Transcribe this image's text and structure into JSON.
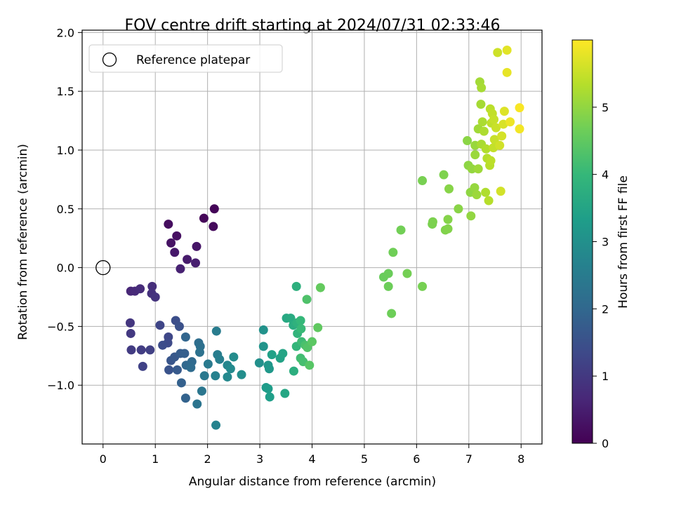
{
  "chart_data": {
    "type": "scatter",
    "title": "FOV centre drift starting at 2024/07/31 02:33:46",
    "xlabel": "Angular distance from reference (arcmin)",
    "ylabel": "Rotation from reference (arcmin)",
    "xlim": [
      -0.4,
      8.4
    ],
    "ylim": [
      -1.5,
      2.02
    ],
    "xticks": [
      0,
      1,
      2,
      3,
      4,
      5,
      6,
      7,
      8
    ],
    "yticks": [
      -1.0,
      -0.5,
      0.0,
      0.5,
      1.0,
      1.5,
      2.0
    ],
    "ytick_labels": [
      "−1.0",
      "−0.5",
      "0.0",
      "0.5",
      "1.0",
      "1.5",
      "2.0"
    ],
    "grid": true,
    "legend": {
      "position": "top-left",
      "entries": [
        "Reference platepar"
      ]
    },
    "reference_point": {
      "x": 0,
      "y": 0
    },
    "colorbar": {
      "label": "Hours from first FF file",
      "colormap": "viridis",
      "range": [
        0,
        6
      ],
      "ticks": [
        0,
        1,
        2,
        3,
        4,
        5
      ],
      "stops": [
        "#440154",
        "#482878",
        "#3e4989",
        "#31688e",
        "#26828e",
        "#1f9e89",
        "#35b779",
        "#6ece58",
        "#b5de2b",
        "#fde725"
      ]
    },
    "points": [
      {
        "x": 2.13,
        "y": 0.5,
        "h": 0.05
      },
      {
        "x": 1.93,
        "y": 0.42,
        "h": 0.1
      },
      {
        "x": 2.11,
        "y": 0.35,
        "h": 0.15
      },
      {
        "x": 1.25,
        "y": 0.37,
        "h": 0.2
      },
      {
        "x": 1.41,
        "y": 0.27,
        "h": 0.25
      },
      {
        "x": 1.3,
        "y": 0.21,
        "h": 0.3
      },
      {
        "x": 1.79,
        "y": 0.18,
        "h": 0.35
      },
      {
        "x": 1.37,
        "y": 0.13,
        "h": 0.4
      },
      {
        "x": 1.61,
        "y": 0.07,
        "h": 0.45
      },
      {
        "x": 1.77,
        "y": 0.04,
        "h": 0.5
      },
      {
        "x": 1.48,
        "y": -0.01,
        "h": 0.55
      },
      {
        "x": 0.53,
        "y": -0.2,
        "h": 0.65
      },
      {
        "x": 0.61,
        "y": -0.2,
        "h": 0.7
      },
      {
        "x": 0.71,
        "y": -0.18,
        "h": 0.75
      },
      {
        "x": 0.94,
        "y": -0.16,
        "h": 0.8
      },
      {
        "x": 0.93,
        "y": -0.22,
        "h": 0.85
      },
      {
        "x": 1.0,
        "y": -0.25,
        "h": 0.9
      },
      {
        "x": 0.52,
        "y": -0.47,
        "h": 0.95
      },
      {
        "x": 0.53,
        "y": -0.56,
        "h": 1.0
      },
      {
        "x": 0.54,
        "y": -0.7,
        "h": 1.05
      },
      {
        "x": 0.73,
        "y": -0.7,
        "h": 1.1
      },
      {
        "x": 0.9,
        "y": -0.7,
        "h": 1.15
      },
      {
        "x": 0.76,
        "y": -0.84,
        "h": 1.2
      },
      {
        "x": 1.09,
        "y": -0.49,
        "h": 1.25
      },
      {
        "x": 1.25,
        "y": -0.59,
        "h": 1.3
      },
      {
        "x": 1.24,
        "y": -0.64,
        "h": 1.35
      },
      {
        "x": 1.14,
        "y": -0.66,
        "h": 1.4
      },
      {
        "x": 1.39,
        "y": -0.45,
        "h": 1.45
      },
      {
        "x": 1.46,
        "y": -0.5,
        "h": 1.5
      },
      {
        "x": 1.26,
        "y": -0.87,
        "h": 1.55
      },
      {
        "x": 1.3,
        "y": -0.79,
        "h": 1.6
      },
      {
        "x": 1.37,
        "y": -0.76,
        "h": 1.65
      },
      {
        "x": 1.42,
        "y": -0.87,
        "h": 1.7
      },
      {
        "x": 1.48,
        "y": -0.73,
        "h": 1.75
      },
      {
        "x": 1.56,
        "y": -0.73,
        "h": 1.8
      },
      {
        "x": 1.5,
        "y": -0.98,
        "h": 1.85
      },
      {
        "x": 1.58,
        "y": -1.11,
        "h": 1.9
      },
      {
        "x": 1.58,
        "y": -0.59,
        "h": 1.95
      },
      {
        "x": 1.59,
        "y": -0.83,
        "h": 2.0
      },
      {
        "x": 1.7,
        "y": -0.8,
        "h": 2.05
      },
      {
        "x": 1.68,
        "y": -0.85,
        "h": 2.1
      },
      {
        "x": 1.83,
        "y": -0.64,
        "h": 2.15
      },
      {
        "x": 1.86,
        "y": -0.67,
        "h": 2.2
      },
      {
        "x": 1.85,
        "y": -0.72,
        "h": 2.25
      },
      {
        "x": 1.8,
        "y": -1.16,
        "h": 2.3
      },
      {
        "x": 1.89,
        "y": -1.05,
        "h": 2.35
      },
      {
        "x": 1.94,
        "y": -0.92,
        "h": 2.4
      },
      {
        "x": 2.01,
        "y": -0.82,
        "h": 2.45
      },
      {
        "x": 2.17,
        "y": -0.54,
        "h": 2.5
      },
      {
        "x": 2.19,
        "y": -0.74,
        "h": 2.55
      },
      {
        "x": 2.23,
        "y": -0.78,
        "h": 2.6
      },
      {
        "x": 2.15,
        "y": -0.92,
        "h": 2.65
      },
      {
        "x": 2.16,
        "y": -1.34,
        "h": 2.7
      },
      {
        "x": 2.38,
        "y": -0.83,
        "h": 2.75
      },
      {
        "x": 2.38,
        "y": -0.93,
        "h": 2.8
      },
      {
        "x": 2.44,
        "y": -0.86,
        "h": 2.85
      },
      {
        "x": 2.5,
        "y": -0.76,
        "h": 2.9
      },
      {
        "x": 2.65,
        "y": -0.91,
        "h": 2.95
      },
      {
        "x": 2.99,
        "y": -0.81,
        "h": 3.0
      },
      {
        "x": 3.07,
        "y": -0.53,
        "h": 3.05
      },
      {
        "x": 3.07,
        "y": -0.67,
        "h": 3.1
      },
      {
        "x": 3.16,
        "y": -0.83,
        "h": 3.15
      },
      {
        "x": 3.18,
        "y": -0.86,
        "h": 3.2
      },
      {
        "x": 3.12,
        "y": -1.02,
        "h": 3.25
      },
      {
        "x": 3.16,
        "y": -1.03,
        "h": 3.3
      },
      {
        "x": 3.19,
        "y": -1.1,
        "h": 3.35
      },
      {
        "x": 3.23,
        "y": -0.74,
        "h": 3.4
      },
      {
        "x": 3.39,
        "y": -0.77,
        "h": 3.45
      },
      {
        "x": 3.44,
        "y": -0.73,
        "h": 3.5
      },
      {
        "x": 3.48,
        "y": -1.07,
        "h": 3.55
      },
      {
        "x": 3.51,
        "y": -0.43,
        "h": 3.6
      },
      {
        "x": 3.59,
        "y": -0.43,
        "h": 3.65
      },
      {
        "x": 3.64,
        "y": -0.49,
        "h": 3.7
      },
      {
        "x": 3.65,
        "y": -0.88,
        "h": 3.75
      },
      {
        "x": 3.7,
        "y": -0.16,
        "h": 3.8
      },
      {
        "x": 3.71,
        "y": -0.47,
        "h": 3.85
      },
      {
        "x": 3.72,
        "y": -0.56,
        "h": 3.9
      },
      {
        "x": 3.7,
        "y": -0.67,
        "h": 3.95
      },
      {
        "x": 3.78,
        "y": -0.45,
        "h": 4.0
      },
      {
        "x": 3.79,
        "y": -0.52,
        "h": 4.05
      },
      {
        "x": 3.8,
        "y": -0.63,
        "h": 4.1
      },
      {
        "x": 3.78,
        "y": -0.77,
        "h": 4.15
      },
      {
        "x": 3.83,
        "y": -0.8,
        "h": 4.2
      },
      {
        "x": 3.87,
        "y": -0.66,
        "h": 4.25
      },
      {
        "x": 3.9,
        "y": -0.27,
        "h": 4.3
      },
      {
        "x": 3.91,
        "y": -0.68,
        "h": 4.35
      },
      {
        "x": 3.95,
        "y": -0.83,
        "h": 4.4
      },
      {
        "x": 4.0,
        "y": -0.63,
        "h": 4.45
      },
      {
        "x": 4.11,
        "y": -0.51,
        "h": 4.5
      },
      {
        "x": 4.16,
        "y": -0.17,
        "h": 4.55
      },
      {
        "x": 5.37,
        "y": -0.08,
        "h": 4.6
      },
      {
        "x": 5.46,
        "y": -0.05,
        "h": 4.62
      },
      {
        "x": 5.46,
        "y": -0.16,
        "h": 4.64
      },
      {
        "x": 5.52,
        "y": -0.39,
        "h": 4.66
      },
      {
        "x": 5.55,
        "y": 0.13,
        "h": 4.68
      },
      {
        "x": 5.7,
        "y": 0.32,
        "h": 4.7
      },
      {
        "x": 5.82,
        "y": -0.05,
        "h": 4.72
      },
      {
        "x": 6.11,
        "y": -0.16,
        "h": 4.74
      },
      {
        "x": 6.11,
        "y": 0.74,
        "h": 4.76
      },
      {
        "x": 6.3,
        "y": 0.37,
        "h": 4.78
      },
      {
        "x": 6.31,
        "y": 0.39,
        "h": 4.8
      },
      {
        "x": 6.52,
        "y": 0.79,
        "h": 4.82
      },
      {
        "x": 6.55,
        "y": 0.32,
        "h": 4.84
      },
      {
        "x": 6.6,
        "y": 0.33,
        "h": 4.86
      },
      {
        "x": 6.6,
        "y": 0.41,
        "h": 4.88
      },
      {
        "x": 6.62,
        "y": 0.67,
        "h": 4.9
      },
      {
        "x": 6.8,
        "y": 0.5,
        "h": 4.92
      },
      {
        "x": 6.97,
        "y": 1.08,
        "h": 4.94
      },
      {
        "x": 6.99,
        "y": 0.87,
        "h": 4.96
      },
      {
        "x": 7.03,
        "y": 0.64,
        "h": 4.98
      },
      {
        "x": 7.04,
        "y": 0.44,
        "h": 5.0
      },
      {
        "x": 7.06,
        "y": 0.84,
        "h": 5.02
      },
      {
        "x": 7.11,
        "y": 0.68,
        "h": 5.04
      },
      {
        "x": 7.12,
        "y": 1.04,
        "h": 5.06
      },
      {
        "x": 7.12,
        "y": 0.96,
        "h": 5.08
      },
      {
        "x": 7.15,
        "y": 0.62,
        "h": 5.1
      },
      {
        "x": 7.18,
        "y": 0.84,
        "h": 5.12
      },
      {
        "x": 7.18,
        "y": 1.18,
        "h": 5.14
      },
      {
        "x": 7.21,
        "y": 1.58,
        "h": 5.16
      },
      {
        "x": 7.23,
        "y": 1.39,
        "h": 5.18
      },
      {
        "x": 7.24,
        "y": 1.53,
        "h": 5.2
      },
      {
        "x": 7.24,
        "y": 1.05,
        "h": 5.22
      },
      {
        "x": 7.26,
        "y": 1.24,
        "h": 5.24
      },
      {
        "x": 7.29,
        "y": 1.16,
        "h": 5.26
      },
      {
        "x": 7.32,
        "y": 0.64,
        "h": 5.28
      },
      {
        "x": 7.33,
        "y": 1.01,
        "h": 5.3
      },
      {
        "x": 7.35,
        "y": 0.93,
        "h": 5.32
      },
      {
        "x": 7.38,
        "y": 0.57,
        "h": 5.34
      },
      {
        "x": 7.4,
        "y": 0.87,
        "h": 5.36
      },
      {
        "x": 7.41,
        "y": 1.35,
        "h": 5.38
      },
      {
        "x": 7.42,
        "y": 0.91,
        "h": 5.4
      },
      {
        "x": 7.43,
        "y": 1.23,
        "h": 5.42
      },
      {
        "x": 7.45,
        "y": 1.31,
        "h": 5.44
      },
      {
        "x": 7.47,
        "y": 1.02,
        "h": 5.46
      },
      {
        "x": 7.48,
        "y": 1.26,
        "h": 5.48
      },
      {
        "x": 7.49,
        "y": 1.09,
        "h": 5.5
      },
      {
        "x": 7.52,
        "y": 1.19,
        "h": 5.52
      },
      {
        "x": 7.55,
        "y": 1.83,
        "h": 5.56
      },
      {
        "x": 7.59,
        "y": 1.04,
        "h": 5.58
      },
      {
        "x": 7.61,
        "y": 0.65,
        "h": 5.6
      },
      {
        "x": 7.63,
        "y": 1.12,
        "h": 5.62
      },
      {
        "x": 7.66,
        "y": 1.22,
        "h": 5.66
      },
      {
        "x": 7.68,
        "y": 1.33,
        "h": 5.7
      },
      {
        "x": 7.73,
        "y": 1.85,
        "h": 5.75
      },
      {
        "x": 7.73,
        "y": 1.66,
        "h": 5.8
      },
      {
        "x": 7.79,
        "y": 1.24,
        "h": 5.85
      },
      {
        "x": 7.97,
        "y": 1.18,
        "h": 5.9
      },
      {
        "x": 7.97,
        "y": 1.36,
        "h": 5.95
      }
    ]
  }
}
